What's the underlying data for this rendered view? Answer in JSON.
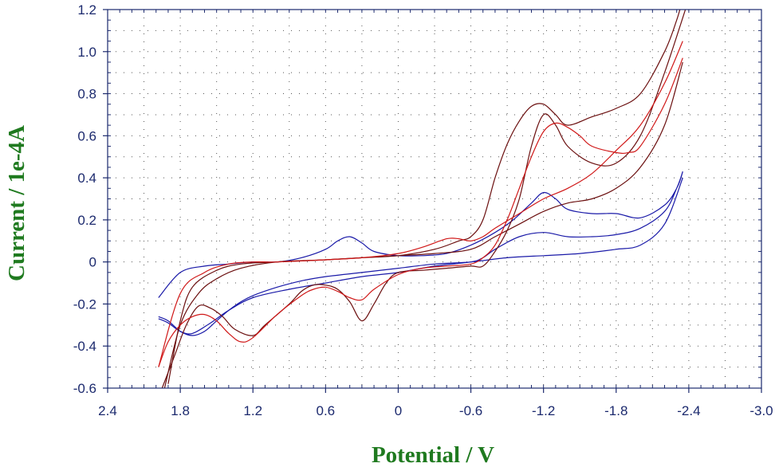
{
  "chart_data": {
    "type": "line",
    "xlabel": "Potential / V",
    "ylabel": "Current / 1e-4A",
    "xlim": [
      2.4,
      -3.0
    ],
    "ylim": [
      -0.6,
      1.2
    ],
    "x_ticks": [
      "2.4",
      "1.8",
      "1.2",
      "0.6",
      "0",
      "-0.6",
      "-1.2",
      "-1.8",
      "-2.4",
      "-3.0"
    ],
    "x_tick_values": [
      2.4,
      1.8,
      1.2,
      0.6,
      0,
      -0.6,
      -1.2,
      -1.8,
      -2.4,
      -3.0
    ],
    "y_ticks": [
      "1.2",
      "1.0",
      "0.8",
      "0.6",
      "0.4",
      "0.2",
      "0",
      "-0.2",
      "-0.4",
      "-0.6"
    ],
    "y_tick_values": [
      1.2,
      1.0,
      0.8,
      0.6,
      0.4,
      0.2,
      0,
      -0.2,
      -0.4,
      -0.6
    ],
    "grid": true,
    "colors": {
      "axis": "#1c2a6e",
      "grid": "#555555",
      "title": "#1f7a1f"
    },
    "series": [
      {
        "color": "#1a1aa8",
        "x": [
          1.98,
          1.8,
          1.6,
          1.4,
          1.2,
          1.0,
          0.8,
          0.6,
          0.5,
          0.4,
          0.3,
          0.2,
          0.0,
          -0.2,
          -0.4,
          -0.6,
          -0.8,
          -0.95,
          -1.1,
          -1.2,
          -1.3,
          -1.4,
          -1.6,
          -1.8,
          -2.0,
          -2.2,
          -2.3,
          -2.35,
          -2.3,
          -2.2,
          -2.0,
          -1.8,
          -1.6,
          -1.4,
          -1.2,
          -1.0,
          -0.8,
          -0.7,
          -0.6,
          -0.3,
          0.0,
          0.3,
          0.6,
          0.9,
          1.2,
          1.4,
          1.55,
          1.7,
          1.8,
          1.9,
          1.98
        ],
        "y": [
          -0.17,
          -0.05,
          -0.02,
          -0.01,
          0.0,
          0.0,
          0.02,
          0.06,
          0.1,
          0.12,
          0.09,
          0.05,
          0.03,
          0.03,
          0.04,
          0.08,
          0.14,
          0.2,
          0.28,
          0.33,
          0.3,
          0.25,
          0.23,
          0.23,
          0.21,
          0.27,
          0.35,
          0.43,
          0.35,
          0.24,
          0.16,
          0.13,
          0.12,
          0.12,
          0.14,
          0.12,
          0.06,
          0.02,
          0.0,
          -0.02,
          -0.05,
          -0.07,
          -0.1,
          -0.13,
          -0.17,
          -0.23,
          -0.29,
          -0.34,
          -0.33,
          -0.29,
          -0.27
        ]
      },
      {
        "color": "#1a1aa8",
        "x": [
          1.98,
          1.9,
          1.8,
          1.7,
          1.6,
          1.5,
          1.4,
          1.3,
          1.2,
          1.0,
          0.8,
          0.6,
          0.3,
          0.0,
          -0.3,
          -0.6,
          -0.9,
          -1.2,
          -1.5,
          -1.8,
          -2.0,
          -2.2,
          -2.35
        ],
        "y": [
          -0.26,
          -0.28,
          -0.33,
          -0.35,
          -0.33,
          -0.28,
          -0.23,
          -0.19,
          -0.16,
          -0.12,
          -0.09,
          -0.07,
          -0.05,
          -0.03,
          -0.01,
          0.0,
          0.02,
          0.03,
          0.04,
          0.06,
          0.08,
          0.18,
          0.4
        ]
      },
      {
        "color": "#6b0f0f",
        "x": [
          1.95,
          1.85,
          1.75,
          1.65,
          1.55,
          1.45,
          1.35,
          1.2,
          1.1,
          0.9,
          0.8,
          0.7,
          0.6,
          0.5,
          0.4,
          0.3,
          0.2,
          0.1,
          0.0,
          -0.2,
          -0.4,
          -0.6,
          -0.7,
          -0.8,
          -0.9,
          -1.0,
          -1.1,
          -1.2,
          -1.3,
          -1.4,
          -1.6,
          -1.8,
          -2.0,
          -2.2,
          -2.4
        ],
        "y": [
          -0.6,
          -0.45,
          -0.3,
          -0.21,
          -0.22,
          -0.26,
          -0.32,
          -0.35,
          -0.3,
          -0.2,
          -0.14,
          -0.11,
          -0.11,
          -0.13,
          -0.19,
          -0.28,
          -0.2,
          -0.1,
          -0.05,
          -0.04,
          -0.03,
          -0.02,
          -0.02,
          0.05,
          0.15,
          0.3,
          0.55,
          0.7,
          0.65,
          0.55,
          0.47,
          0.47,
          0.6,
          0.9,
          1.25
        ]
      },
      {
        "color": "#6b0f0f",
        "x": [
          1.9,
          1.8,
          1.7,
          1.5,
          1.3,
          1.0,
          0.6,
          0.3,
          0.0,
          -0.3,
          -0.5,
          -0.6,
          -0.7,
          -0.8,
          -0.9,
          -1.0,
          -1.1,
          -1.2,
          -1.3,
          -1.4,
          -1.6,
          -1.8,
          -2.0,
          -2.2,
          -2.3,
          -2.35
        ],
        "y": [
          -0.58,
          -0.28,
          -0.12,
          -0.04,
          -0.01,
          0.0,
          0.01,
          0.02,
          0.03,
          0.06,
          0.1,
          0.12,
          0.2,
          0.4,
          0.56,
          0.67,
          0.74,
          0.75,
          0.7,
          0.65,
          0.69,
          0.73,
          0.8,
          1.0,
          1.15,
          1.25
        ]
      },
      {
        "color": "#6b0f0f",
        "x": [
          1.93,
          1.8,
          1.65,
          1.5,
          1.3,
          1.0,
          0.6,
          0.3,
          0.0,
          -0.3,
          -0.6,
          -0.8,
          -1.0,
          -1.2,
          -1.4,
          -1.6,
          -1.8,
          -2.0,
          -2.2,
          -2.35
        ],
        "y": [
          -0.6,
          -0.3,
          -0.15,
          -0.08,
          -0.03,
          0.0,
          0.01,
          0.02,
          0.03,
          0.04,
          0.06,
          0.12,
          0.18,
          0.24,
          0.28,
          0.3,
          0.35,
          0.45,
          0.65,
          0.95
        ]
      },
      {
        "color": "#d01818",
        "x": [
          1.98,
          1.9,
          1.8,
          1.7,
          1.6,
          1.5,
          1.4,
          1.3,
          1.2,
          1.0,
          0.8,
          0.7,
          0.6,
          0.5,
          0.4,
          0.3,
          0.2,
          0.0,
          -0.2,
          -0.4,
          -0.6,
          -0.7,
          -0.8,
          -0.9,
          -1.0,
          -1.1,
          -1.2,
          -1.3,
          -1.4,
          -1.5,
          -1.6,
          -1.8,
          -1.9,
          -2.0,
          -2.2,
          -2.35
        ],
        "y": [
          -0.5,
          -0.38,
          -0.3,
          -0.26,
          -0.25,
          -0.28,
          -0.34,
          -0.38,
          -0.36,
          -0.25,
          -0.16,
          -0.13,
          -0.12,
          -0.14,
          -0.17,
          -0.18,
          -0.13,
          -0.06,
          -0.03,
          -0.02,
          -0.01,
          0.02,
          0.08,
          0.2,
          0.35,
          0.5,
          0.62,
          0.66,
          0.64,
          0.6,
          0.55,
          0.52,
          0.52,
          0.55,
          0.75,
          0.97
        ]
      },
      {
        "color": "#d01818",
        "x": [
          1.98,
          1.8,
          1.6,
          1.4,
          1.2,
          1.0,
          0.6,
          0.3,
          0.0,
          -0.2,
          -0.4,
          -0.5,
          -0.6,
          -0.7,
          -0.8,
          -1.0,
          -1.2,
          -1.4,
          -1.6,
          -1.8,
          -2.0,
          -2.2,
          -2.35
        ],
        "y": [
          -0.5,
          -0.15,
          -0.05,
          -0.01,
          0.0,
          0.0,
          0.01,
          0.02,
          0.04,
          0.07,
          0.11,
          0.11,
          0.1,
          0.12,
          0.16,
          0.23,
          0.3,
          0.35,
          0.42,
          0.53,
          0.65,
          0.85,
          1.05
        ]
      }
    ]
  }
}
